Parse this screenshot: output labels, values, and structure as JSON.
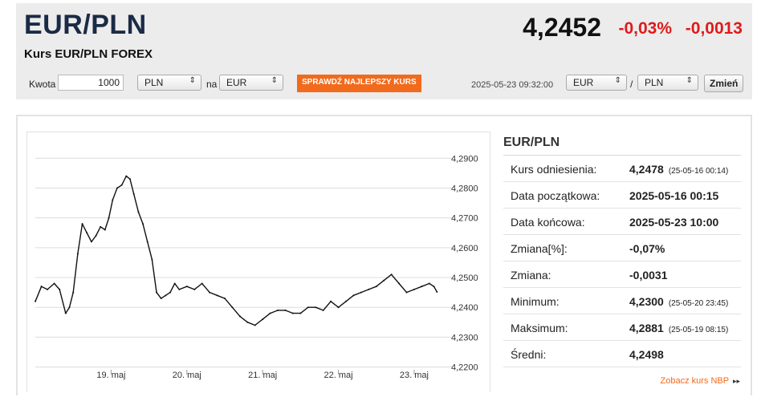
{
  "header": {
    "title": "EUR/PLN",
    "subtitle": "Kurs EUR/PLN FOREX",
    "rate": "4,2452",
    "change_pct": "-0,03%",
    "change_abs": "-0,0013"
  },
  "converter": {
    "amount_label": "Kwota",
    "amount_value": "1000",
    "from_currency": "PLN",
    "to_label": "na",
    "to_currency": "EUR",
    "check_button": "SPRAWDŹ NAJLEPSZY KURS",
    "timestamp": "2025-05-23 09:32:00",
    "pair_base": "EUR",
    "pair_separator": "/",
    "pair_quote": "PLN",
    "change_button": "Zmień"
  },
  "colors": {
    "accent": "#f26a1b",
    "negative": "#e01a1a",
    "title": "#1b2a45"
  },
  "chart_data": {
    "type": "line",
    "ylim": [
      4.218,
      4.296
    ],
    "yticks": [
      "4,2900",
      "4,2800",
      "4,2700",
      "4,2600",
      "4,2500",
      "4,2400",
      "4,2300",
      "4,2200"
    ],
    "ytick_values": [
      4.29,
      4.28,
      4.27,
      4.26,
      4.25,
      4.24,
      4.23,
      4.22
    ],
    "xlim": [
      0,
      5.35
    ],
    "xticks": [
      "19. maj",
      "20. maj",
      "21. maj",
      "22. maj",
      "23. maj"
    ],
    "xtick_values": [
      1.0,
      2.0,
      3.0,
      4.0,
      5.0
    ],
    "grid": true,
    "series": [
      {
        "x": [
          0.0,
          0.08,
          0.16,
          0.25,
          0.32,
          0.4,
          0.45,
          0.5,
          0.56,
          0.62,
          0.68,
          0.74,
          0.8,
          0.86,
          0.92,
          0.97,
          1.02,
          1.08,
          1.14,
          1.2,
          1.25,
          1.3,
          1.36,
          1.42,
          1.48,
          1.54,
          1.6,
          1.66,
          1.72,
          1.78,
          1.84,
          1.9,
          2.0,
          2.1,
          2.2,
          2.3,
          2.4,
          2.5,
          2.6,
          2.7,
          2.8,
          2.9,
          3.0,
          3.1,
          3.2,
          3.3,
          3.4,
          3.5,
          3.6,
          3.7,
          3.8,
          3.9,
          4.0,
          4.1,
          4.2,
          4.3,
          4.4,
          4.5,
          4.6,
          4.7,
          4.8,
          4.9,
          5.0,
          5.1,
          5.2,
          5.26,
          5.3
        ],
        "values": [
          4.242,
          4.247,
          4.246,
          4.248,
          4.246,
          4.238,
          4.24,
          4.245,
          4.258,
          4.268,
          4.265,
          4.262,
          4.264,
          4.267,
          4.266,
          4.27,
          4.276,
          4.28,
          4.281,
          4.284,
          4.283,
          4.278,
          4.272,
          4.268,
          4.262,
          4.256,
          4.245,
          4.243,
          4.244,
          4.245,
          4.248,
          4.246,
          4.247,
          4.246,
          4.248,
          4.245,
          4.244,
          4.243,
          4.24,
          4.237,
          4.235,
          4.234,
          4.236,
          4.238,
          4.239,
          4.239,
          4.238,
          4.238,
          4.24,
          4.24,
          4.239,
          4.242,
          4.24,
          4.242,
          4.244,
          4.245,
          4.246,
          4.247,
          4.249,
          4.251,
          4.248,
          4.245,
          4.246,
          4.247,
          4.248,
          4.247,
          4.2452
        ]
      }
    ]
  },
  "stats": {
    "title": "EUR/PLN",
    "rows": [
      {
        "label": "Kurs odniesienia:",
        "value": "4,2478",
        "note": "(25-05-16 00:14)"
      },
      {
        "label": "Data początkowa:",
        "value": "2025-05-16 00:15",
        "note": ""
      },
      {
        "label": "Data końcowa:",
        "value": "2025-05-23 10:00",
        "note": ""
      },
      {
        "label": "Zmiana[%]:",
        "value": "-0,07%",
        "note": ""
      },
      {
        "label": "Zmiana:",
        "value": "-0,0031",
        "note": ""
      },
      {
        "label": "Minimum:",
        "value": "4,2300",
        "note": "(25-05-20 23:45)"
      },
      {
        "label": "Maksimum:",
        "value": "4,2881",
        "note": "(25-05-19 08:15)"
      },
      {
        "label": "Średni:",
        "value": "4,2498",
        "note": ""
      }
    ],
    "nbp_link": "Zobacz kurs NBP",
    "nbp_arrow": "▸▸"
  }
}
